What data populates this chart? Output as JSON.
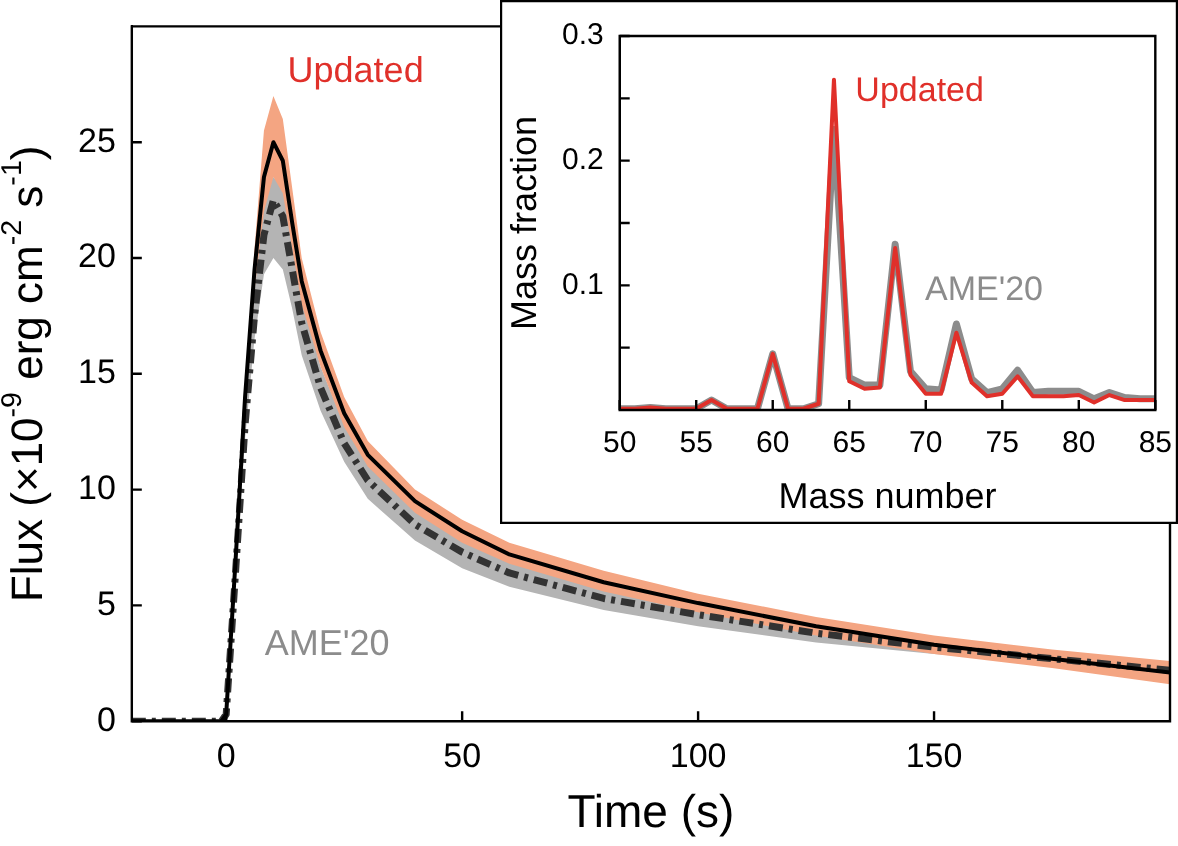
{
  "chart_data": [
    {
      "type": "line",
      "xlabel": "Time (s)",
      "ylabel": "Flux (×10$^{-9}$ erg cm$^{-2}$ s$^{-1}$)",
      "xlim": [
        -20,
        200
      ],
      "xticks": [
        0,
        50,
        100,
        150
      ],
      "ylim": [
        0,
        30
      ],
      "yticks": [
        0,
        5,
        10,
        15,
        20,
        25
      ],
      "marker": "none",
      "x": [
        -20,
        -1,
        0,
        2,
        4,
        6,
        8,
        10,
        12,
        14,
        16,
        20,
        25,
        30,
        40,
        50,
        60,
        80,
        100,
        125,
        150,
        175,
        200
      ],
      "series": [
        {
          "name": "AME'20",
          "color": "#333333",
          "line_style": "dashed",
          "values": [
            0,
            0,
            0.3,
            6.5,
            12.8,
            17.5,
            21,
            22.5,
            21.8,
            19.5,
            17.2,
            14.4,
            12,
            10.4,
            8.5,
            7.3,
            6.4,
            5.3,
            4.6,
            3.8,
            3.2,
            2.7,
            2.2
          ],
          "lower": [
            0,
            0,
            0.3,
            6.2,
            12.2,
            16.5,
            19.3,
            20,
            19.5,
            17.8,
            15.8,
            13.4,
            11.2,
            9.6,
            7.8,
            6.6,
            5.8,
            4.8,
            4.1,
            3.4,
            2.9,
            2.5,
            2.0
          ],
          "upper": [
            0,
            0,
            0.3,
            6.8,
            13.4,
            18.5,
            22.7,
            23.5,
            23,
            20.8,
            18.4,
            15.3,
            12.8,
            11.1,
            9.1,
            7.9,
            6.9,
            5.8,
            5.0,
            4.1,
            3.5,
            2.9,
            2.4
          ]
        },
        {
          "name": "Updated",
          "color": "#000000",
          "line_style": "solid",
          "values": [
            0,
            0,
            0.3,
            7,
            14,
            19.5,
            23.5,
            25,
            24.2,
            21.5,
            19,
            16,
            13.3,
            11.5,
            9.5,
            8.2,
            7.2,
            6.0,
            5.1,
            4.1,
            3.3,
            2.7,
            2.1
          ],
          "lower": [
            0,
            0,
            0.3,
            6.8,
            13.4,
            18.6,
            22,
            23.5,
            22.8,
            20.4,
            18,
            15.3,
            12.7,
            11,
            9,
            7.7,
            6.8,
            5.6,
            4.7,
            3.7,
            2.9,
            2.3,
            1.6
          ],
          "upper": [
            0,
            0,
            0.3,
            7.2,
            14.6,
            20.4,
            25.5,
            27,
            26,
            23,
            20,
            16.8,
            14,
            12.1,
            10,
            8.7,
            7.7,
            6.5,
            5.5,
            4.5,
            3.7,
            3.1,
            2.6
          ]
        }
      ]
    },
    {
      "type": "line",
      "xlabel": "Mass number",
      "ylabel": "Mass fraction",
      "xlim": [
        50,
        85
      ],
      "xticks": [
        50,
        55,
        60,
        65,
        70,
        75,
        80,
        85
      ],
      "ylim": [
        0,
        0.3
      ],
      "yticks": [
        {
          "value": 0.05,
          "label": null
        },
        0.1,
        {
          "value": 0.15,
          "label": null
        },
        0.2,
        {
          "value": 0.25,
          "label": null
        },
        0.3
      ],
      "marker": "none",
      "x": [
        50,
        51,
        52,
        53,
        54,
        55,
        56,
        57,
        58,
        59,
        60,
        61,
        62,
        63,
        64,
        65,
        66,
        67,
        68,
        69,
        70,
        71,
        72,
        73,
        74,
        75,
        76,
        77,
        78,
        79,
        80,
        81,
        82,
        83,
        84,
        85
      ],
      "series": [
        {
          "name": "AME'20",
          "color": "#8c8c8c",
          "line_style": "solid",
          "values": [
            0.001,
            0.001,
            0.002,
            0.001,
            0.001,
            0.001,
            0.008,
            0.001,
            0.001,
            0.001,
            0.045,
            0.001,
            0.001,
            0.005,
            0.225,
            0.026,
            0.02,
            0.02,
            0.133,
            0.031,
            0.017,
            0.016,
            0.069,
            0.025,
            0.014,
            0.017,
            0.032,
            0.014,
            0.015,
            0.015,
            0.015,
            0.009,
            0.014,
            0.01,
            0.009,
            0.009
          ]
        },
        {
          "name": "Updated",
          "color": "#e0302a",
          "line_style": "solid",
          "values": [
            0.001,
            0.001,
            0.002,
            0.001,
            0.001,
            0.001,
            0.008,
            0.001,
            0.001,
            0.001,
            0.045,
            0.001,
            0.001,
            0.005,
            0.265,
            0.023,
            0.017,
            0.018,
            0.13,
            0.028,
            0.013,
            0.013,
            0.062,
            0.022,
            0.011,
            0.013,
            0.027,
            0.011,
            0.011,
            0.011,
            0.012,
            0.006,
            0.012,
            0.008,
            0.008,
            0.008
          ]
        }
      ]
    }
  ]
}
